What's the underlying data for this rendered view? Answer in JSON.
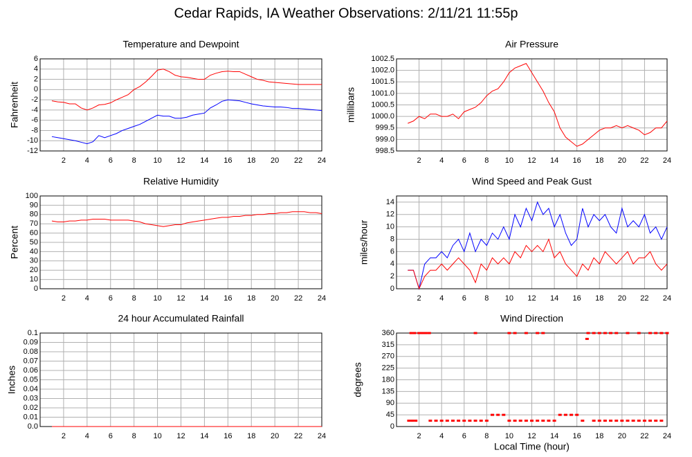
{
  "title": "Cedar Rapids, IA Weather Observations: 2/11/21 11:55p",
  "chart_data": [
    {
      "type": "line",
      "title": "Temperature and Dewpoint",
      "y_label": "Fahrenheit",
      "x": [
        1,
        1.5,
        2,
        2.5,
        3,
        3.5,
        4,
        4.5,
        5,
        5.5,
        6,
        6.5,
        7,
        7.5,
        8,
        8.5,
        9,
        9.5,
        10,
        10.5,
        11,
        11.5,
        12,
        12.5,
        13,
        13.5,
        14,
        14.5,
        15,
        15.5,
        16,
        16.5,
        17,
        17.5,
        18,
        18.5,
        19,
        19.5,
        20,
        20.5,
        21,
        21.5,
        22,
        22.5,
        23,
        23.5,
        24
      ],
      "series": [
        {
          "color": "#ff0000",
          "values": [
            -2.2,
            -2.4,
            -2.5,
            -2.8,
            -2.8,
            -3.6,
            -4.0,
            -3.6,
            -3.0,
            -2.9,
            -2.6,
            -2.0,
            -1.5,
            -1.0,
            0,
            0.6,
            1.5,
            2.6,
            3.8,
            4.0,
            3.5,
            2.8,
            2.5,
            2.4,
            2.2,
            2.0,
            2.0,
            2.8,
            3.2,
            3.5,
            3.6,
            3.5,
            3.5,
            3.0,
            2.5,
            2.0,
            1.8,
            1.5,
            1.4,
            1.3,
            1.2,
            1.1,
            1.0,
            1.0,
            1.0,
            1.0,
            1.0
          ]
        },
        {
          "color": "#0000ff",
          "values": [
            -9.2,
            -9.4,
            -9.6,
            -9.8,
            -10.0,
            -10.3,
            -10.6,
            -10.2,
            -9.0,
            -9.4,
            -9.0,
            -8.6,
            -8.0,
            -7.6,
            -7.2,
            -6.8,
            -6.2,
            -5.6,
            -5.0,
            -5.2,
            -5.2,
            -5.6,
            -5.6,
            -5.4,
            -5.0,
            -4.8,
            -4.6,
            -3.6,
            -3.0,
            -2.3,
            -2.0,
            -2.1,
            -2.2,
            -2.5,
            -2.8,
            -3.0,
            -3.2,
            -3.3,
            -3.4,
            -3.4,
            -3.5,
            -3.7,
            -3.7,
            -3.8,
            -3.9,
            -4.0,
            -4.1
          ]
        }
      ],
      "xlim": [
        0,
        24
      ],
      "xticks": [
        2,
        4,
        6,
        8,
        10,
        12,
        14,
        16,
        18,
        20,
        22,
        24
      ],
      "ylim": [
        -12,
        6
      ],
      "yticks": [
        6,
        4,
        2,
        0,
        -2,
        -4,
        -6,
        -8,
        -10,
        -12
      ],
      "grid": true
    },
    {
      "type": "line",
      "title": "Air Pressure",
      "y_label": "millibars",
      "x": [
        1,
        1.5,
        2,
        2.5,
        3,
        3.5,
        4,
        4.5,
        5,
        5.5,
        6,
        6.5,
        7,
        7.5,
        8,
        8.5,
        9,
        9.5,
        10,
        10.5,
        11,
        11.5,
        12,
        12.5,
        13,
        13.5,
        14,
        14.5,
        15,
        15.5,
        16,
        16.5,
        17,
        17.5,
        18,
        18.5,
        19,
        19.5,
        20,
        20.5,
        21,
        21.5,
        22,
        22.5,
        23,
        23.5,
        24
      ],
      "series": [
        {
          "color": "#ff0000",
          "values": [
            999.7,
            999.8,
            1000.0,
            999.9,
            1000.1,
            1000.1,
            1000.0,
            1000.0,
            1000.1,
            999.9,
            1000.2,
            1000.3,
            1000.4,
            1000.6,
            1000.9,
            1001.1,
            1001.2,
            1001.5,
            1001.9,
            1002.1,
            1002.2,
            1002.3,
            1001.9,
            1001.5,
            1001.1,
            1000.6,
            1000.2,
            999.5,
            999.1,
            998.9,
            998.7,
            998.8,
            999.0,
            999.2,
            999.4,
            999.5,
            999.5,
            999.6,
            999.5,
            999.6,
            999.5,
            999.4,
            999.2,
            999.3,
            999.5,
            999.5,
            999.8
          ]
        }
      ],
      "xlim": [
        0,
        24
      ],
      "xticks": [
        2,
        4,
        6,
        8,
        10,
        12,
        14,
        16,
        18,
        20,
        22,
        24
      ],
      "ylim": [
        998.5,
        1002.5
      ],
      "yticks": [
        1002.5,
        {
          "value": 1002,
          "label": "1002.0"
        },
        1001.5,
        {
          "value": 1001,
          "label": "1001.0"
        },
        1000.5,
        {
          "value": 1000,
          "label": "1000.0"
        },
        999.5,
        {
          "value": 999,
          "label": "999.0"
        },
        998.5
      ],
      "grid": true
    },
    {
      "type": "line",
      "title": "Relative Humidity",
      "y_label": "Percent",
      "x": [
        1,
        1.5,
        2,
        2.5,
        3,
        3.5,
        4,
        4.5,
        5,
        5.5,
        6,
        6.5,
        7,
        7.5,
        8,
        8.5,
        9,
        9.5,
        10,
        10.5,
        11,
        11.5,
        12,
        12.5,
        13,
        13.5,
        14,
        14.5,
        15,
        15.5,
        16,
        16.5,
        17,
        17.5,
        18,
        18.5,
        19,
        19.5,
        20,
        20.5,
        21,
        21.5,
        22,
        22.5,
        23,
        23.5,
        24
      ],
      "series": [
        {
          "color": "#ff0000",
          "values": [
            73,
            72,
            72,
            73,
            73,
            74,
            74,
            75,
            75,
            75,
            74,
            74,
            74,
            74,
            73,
            72,
            70,
            69,
            68,
            67,
            68,
            69,
            69,
            71,
            72,
            73,
            74,
            75,
            76,
            77,
            77,
            78,
            78,
            79,
            79,
            80,
            80,
            81,
            81,
            82,
            82,
            83,
            83,
            83,
            82,
            82,
            81
          ]
        }
      ],
      "xlim": [
        0,
        24
      ],
      "xticks": [
        2,
        4,
        6,
        8,
        10,
        12,
        14,
        16,
        18,
        20,
        22,
        24
      ],
      "ylim": [
        0,
        100
      ],
      "yticks": [
        100,
        90,
        80,
        70,
        60,
        50,
        40,
        30,
        20,
        10,
        0
      ],
      "grid": true
    },
    {
      "type": "line",
      "title": "Wind Speed and Peak Gust",
      "y_label": "miles/hour",
      "x": [
        1,
        1.5,
        2,
        2.5,
        3,
        3.5,
        4,
        4.5,
        5,
        5.5,
        6,
        6.5,
        7,
        7.5,
        8,
        8.5,
        9,
        9.5,
        10,
        10.5,
        11,
        11.5,
        12,
        12.5,
        13,
        13.5,
        14,
        14.5,
        15,
        15.5,
        16,
        16.5,
        17,
        17.5,
        18,
        18.5,
        19,
        19.5,
        20,
        20.5,
        21,
        21.5,
        22,
        22.5,
        23,
        23.5,
        24
      ],
      "series": [
        {
          "color": "#0000ff",
          "values": [
            3,
            3,
            0,
            4,
            5,
            5,
            6,
            5,
            7,
            8,
            6,
            9,
            6,
            8,
            7,
            9,
            8,
            10,
            8,
            12,
            10,
            13,
            11,
            14,
            12,
            13,
            10,
            12,
            9,
            7,
            8,
            13,
            10,
            12,
            11,
            12,
            10,
            9,
            13,
            10,
            11,
            10,
            12,
            9,
            10,
            8,
            10
          ]
        },
        {
          "color": "#ff0000",
          "values": [
            3,
            3,
            0,
            2,
            3,
            3,
            4,
            3,
            4,
            5,
            4,
            3,
            1,
            4,
            3,
            5,
            4,
            5,
            4,
            6,
            5,
            7,
            6,
            7,
            6,
            8,
            5,
            6,
            4,
            3,
            2,
            4,
            3,
            5,
            4,
            6,
            5,
            4,
            5,
            6,
            4,
            5,
            5,
            6,
            4,
            3,
            4
          ]
        }
      ],
      "xlim": [
        0,
        24
      ],
      "xticks": [
        2,
        4,
        6,
        8,
        10,
        12,
        14,
        16,
        18,
        20,
        22,
        24
      ],
      "ylim": [
        0,
        15
      ],
      "yticks": [
        14,
        12,
        10,
        8,
        6,
        4,
        2,
        0
      ],
      "grid": true
    },
    {
      "type": "line",
      "title": "24 hour Accumulated Rainfall",
      "y_label": "Inches",
      "x": [
        1,
        24
      ],
      "series": [
        {
          "color": "#ff0000",
          "values": [
            0,
            0
          ]
        }
      ],
      "xlim": [
        0,
        24
      ],
      "xticks": [
        2,
        4,
        6,
        8,
        10,
        12,
        14,
        16,
        18,
        20,
        22,
        24
      ],
      "ylim": [
        0,
        0.1
      ],
      "yticks": [
        0.1,
        0.09,
        0.08,
        0.07,
        0.06,
        0.05,
        0.04,
        0.03,
        0.02,
        0.01,
        {
          "value": 0,
          "label": "0.0"
        }
      ],
      "grid": true
    },
    {
      "type": "scatter",
      "title": "Wind Direction",
      "y_label": "degrees",
      "x_label": "Local Time (hour)",
      "x": [
        1.1,
        1.4,
        1.7,
        3,
        3.5,
        4,
        4.5,
        5,
        5.5,
        6,
        6.5,
        7,
        7.5,
        8,
        8.5,
        9,
        9.5,
        10,
        10.5,
        11,
        11.5,
        12,
        12.5,
        13,
        13.5,
        14,
        14.5,
        15,
        15.5,
        16,
        16.5,
        17.5,
        18,
        18.5,
        19,
        19.5,
        20,
        20.5,
        21,
        21.5,
        22,
        22.5,
        23,
        23.5,
        1.3,
        1.6,
        2,
        2.3,
        2.6,
        2.9,
        7,
        10,
        10.5,
        11.5,
        12.5,
        13,
        16.9,
        17,
        17.5,
        18,
        18.5,
        19,
        19.5,
        20.5,
        21.5,
        22.5,
        23,
        23.5,
        24
      ],
      "color": "#ff0000",
      "values": [
        22.5,
        22.5,
        22.5,
        22.5,
        22.5,
        22.5,
        22.5,
        22.5,
        22.5,
        22.5,
        22.5,
        22.5,
        22.5,
        22.5,
        45,
        45,
        45,
        22.5,
        22.5,
        22.5,
        22.5,
        22.5,
        22.5,
        22.5,
        22.5,
        22.5,
        45,
        45,
        45,
        45,
        22.5,
        22.5,
        22.5,
        22.5,
        22.5,
        22.5,
        22.5,
        22.5,
        22.5,
        22.5,
        22.5,
        22.5,
        22.5,
        22.5,
        360,
        360,
        360,
        360,
        360,
        360,
        360,
        360,
        360,
        360,
        360,
        360,
        337.5,
        360,
        360,
        360,
        360,
        360,
        360,
        360,
        360,
        360,
        360,
        360,
        360
      ],
      "xlim": [
        0,
        24
      ],
      "xticks": [
        2,
        4,
        6,
        8,
        10,
        12,
        14,
        16,
        18,
        20,
        22,
        24
      ],
      "ylim": [
        0,
        360
      ],
      "yticks": [
        360,
        315,
        270,
        225,
        180,
        135,
        90,
        45,
        0
      ],
      "grid": true
    }
  ]
}
